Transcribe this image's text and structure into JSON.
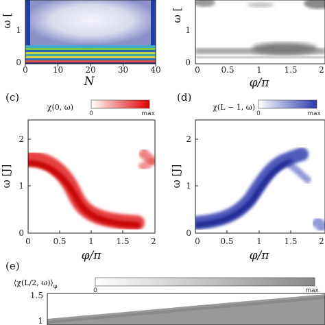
{
  "figure": {
    "panels": {
      "a": {
        "xlabel": "N",
        "ylabel": "ω [",
        "xticks": [
          "0",
          "10",
          "20",
          "30",
          "40"
        ],
        "yticks": [
          "0",
          "1"
        ]
      },
      "b": {
        "xlabel": "φ/π",
        "ylabel": "ω [",
        "xticks": [
          "0",
          "0.5",
          "1",
          "1.5",
          "2"
        ],
        "yticks": [
          "0",
          "1"
        ]
      },
      "c": {
        "label": "(c)",
        "cb_label": "χ(0, ω)",
        "cb_min": "0",
        "cb_max": "max",
        "cb_color": "#e00000",
        "ylabel": "ω [J]",
        "xlabel": "φ/π",
        "xticks": [
          "0",
          "0.5",
          "1",
          "1.5",
          "2"
        ],
        "yticks": [
          "0",
          "1",
          "2"
        ]
      },
      "d": {
        "label": "(d)",
        "cb_label": "χ(L − 1, ω)",
        "cb_min": "0",
        "cb_max": "max",
        "cb_color": "#2b3aa8",
        "ylabel": "ω [J]",
        "xlabel": "φ/π",
        "xticks": [
          "0",
          "0.5",
          "1",
          "1.5",
          "2"
        ],
        "yticks": [
          "0",
          "1",
          "2"
        ]
      },
      "e": {
        "label": "(e)",
        "cb_label": "⟨χ(L/2, ω)⟩",
        "cb_sub": "φ",
        "cb_min": "0",
        "cb_max": "max",
        "cb_color": "#888888",
        "yticks": [
          "1.5",
          "1"
        ]
      }
    }
  }
}
